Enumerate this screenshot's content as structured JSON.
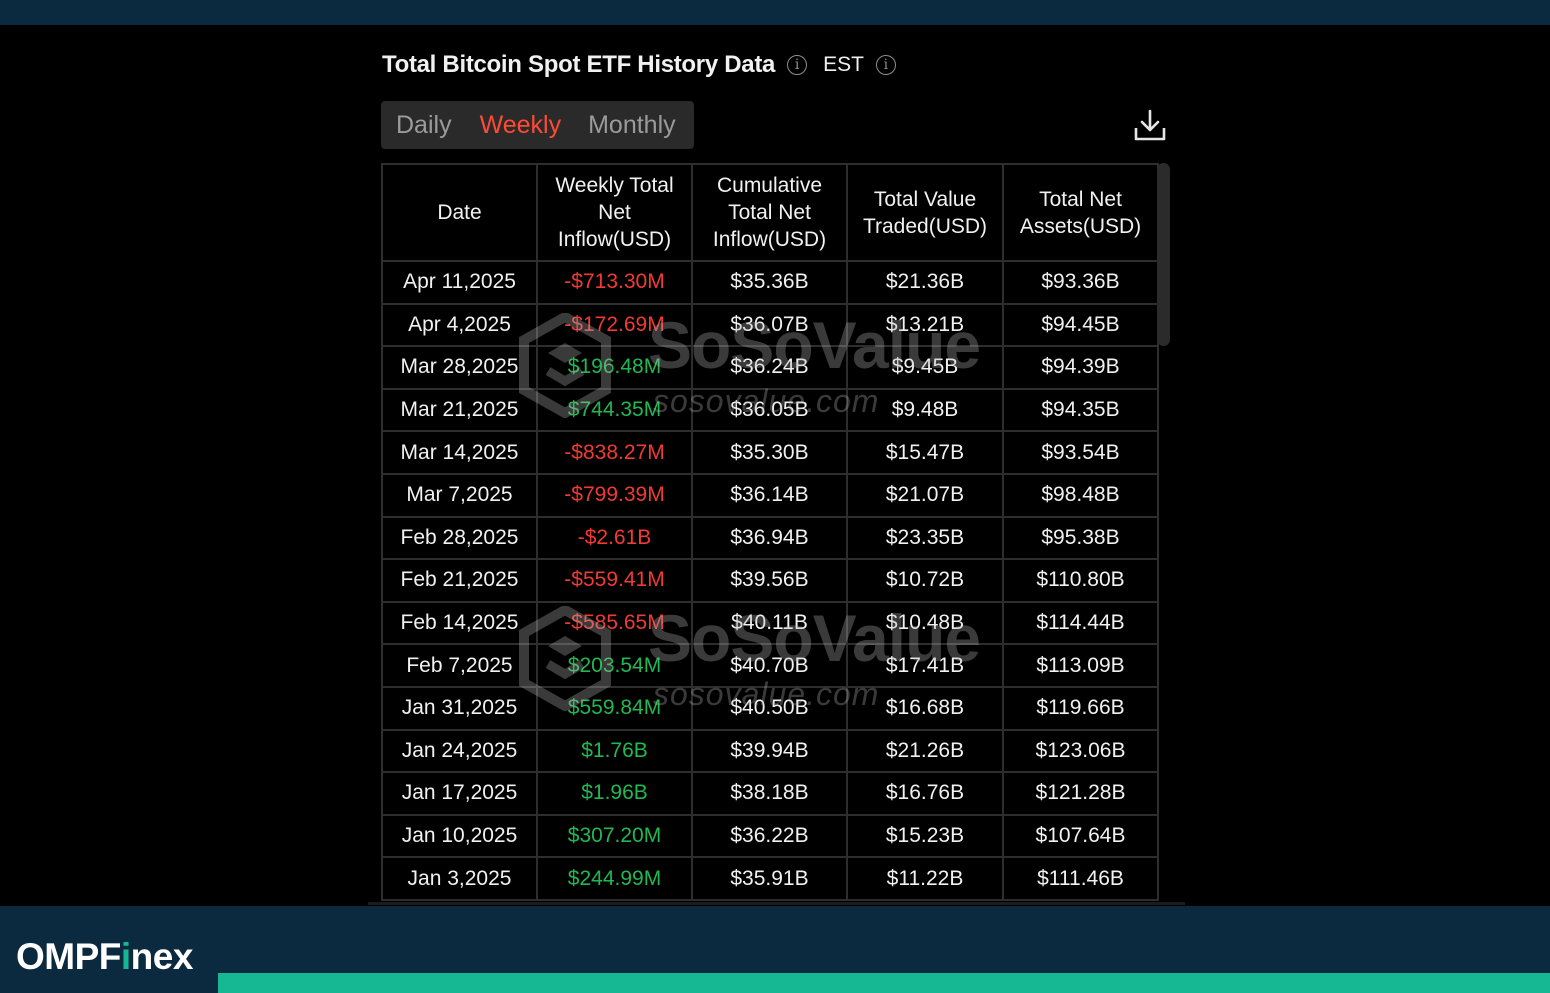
{
  "header": {
    "title": "Total Bitcoin Spot ETF History Data",
    "timezone": "EST"
  },
  "tabs": [
    {
      "label": "Daily",
      "active": false
    },
    {
      "label": "Weekly",
      "active": true
    },
    {
      "label": "Monthly",
      "active": false
    }
  ],
  "table": {
    "columns": [
      [
        "Date"
      ],
      [
        "Weekly Total",
        "Net",
        "Inflow(USD)"
      ],
      [
        "Cumulative",
        "Total Net",
        "Inflow(USD)"
      ],
      [
        "Total Value",
        "Traded(USD)"
      ],
      [
        "Total Net",
        "Assets(USD)"
      ]
    ],
    "rows": [
      {
        "date": "Apr 11,2025",
        "inflow": "-$713.30M",
        "cumulative": "$35.36B",
        "traded": "$21.36B",
        "assets": "$93.36B"
      },
      {
        "date": "Apr 4,2025",
        "inflow": "-$172.69M",
        "cumulative": "$36.07B",
        "traded": "$13.21B",
        "assets": "$94.45B"
      },
      {
        "date": "Mar 28,2025",
        "inflow": "$196.48M",
        "cumulative": "$36.24B",
        "traded": "$9.45B",
        "assets": "$94.39B"
      },
      {
        "date": "Mar 21,2025",
        "inflow": "$744.35M",
        "cumulative": "$36.05B",
        "traded": "$9.48B",
        "assets": "$94.35B"
      },
      {
        "date": "Mar 14,2025",
        "inflow": "-$838.27M",
        "cumulative": "$35.30B",
        "traded": "$15.47B",
        "assets": "$93.54B"
      },
      {
        "date": "Mar 7,2025",
        "inflow": "-$799.39M",
        "cumulative": "$36.14B",
        "traded": "$21.07B",
        "assets": "$98.48B"
      },
      {
        "date": "Feb 28,2025",
        "inflow": "-$2.61B",
        "cumulative": "$36.94B",
        "traded": "$23.35B",
        "assets": "$95.38B"
      },
      {
        "date": "Feb 21,2025",
        "inflow": "-$559.41M",
        "cumulative": "$39.56B",
        "traded": "$10.72B",
        "assets": "$110.80B"
      },
      {
        "date": "Feb 14,2025",
        "inflow": "-$585.65M",
        "cumulative": "$40.11B",
        "traded": "$10.48B",
        "assets": "$114.44B"
      },
      {
        "date": "Feb 7,2025",
        "inflow": "$203.54M",
        "cumulative": "$40.70B",
        "traded": "$17.41B",
        "assets": "$113.09B"
      },
      {
        "date": "Jan 31,2025",
        "inflow": "$559.84M",
        "cumulative": "$40.50B",
        "traded": "$16.68B",
        "assets": "$119.66B"
      },
      {
        "date": "Jan 24,2025",
        "inflow": "$1.76B",
        "cumulative": "$39.94B",
        "traded": "$21.26B",
        "assets": "$123.06B"
      },
      {
        "date": "Jan 17,2025",
        "inflow": "$1.96B",
        "cumulative": "$38.18B",
        "traded": "$16.76B",
        "assets": "$121.28B"
      },
      {
        "date": "Jan 10,2025",
        "inflow": "$307.20M",
        "cumulative": "$36.22B",
        "traded": "$15.23B",
        "assets": "$107.64B"
      },
      {
        "date": "Jan 3,2025",
        "inflow": "$244.99M",
        "cumulative": "$35.91B",
        "traded": "$11.22B",
        "assets": "$111.46B"
      }
    ]
  },
  "watermark": {
    "name": "SoSoValue",
    "url": "sosovalue.com"
  },
  "branding": {
    "text_before": "OMPF",
    "text_accent": "i",
    "text_after": "nex"
  },
  "colors": {
    "background": "#000000",
    "top_bar": "#0c2a3f",
    "bottom_bar": "#0c2a3f",
    "brand_accent": "#16b793",
    "active_tab": "#ff4a35",
    "negative": "#f03a32",
    "positive": "#22b851"
  },
  "icons": {
    "title_info": "info-icon",
    "timezone_info": "info-icon",
    "download": "download-icon"
  }
}
